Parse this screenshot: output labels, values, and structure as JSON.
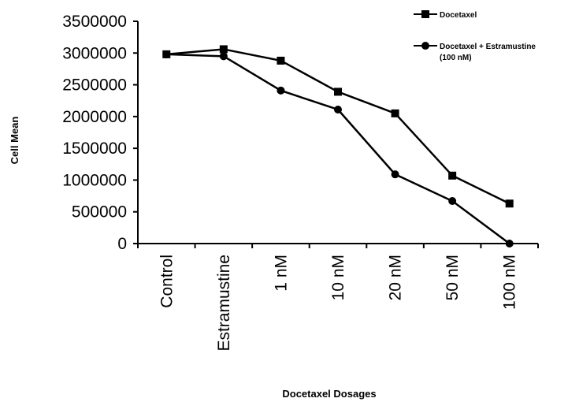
{
  "chart_data": {
    "type": "line",
    "title": "",
    "xlabel": "Docetaxel Dosages",
    "ylabel": "Cell Mean",
    "categories": [
      "Control",
      "Estramustine",
      "1 nM",
      "10 nM",
      "20 nM",
      "50 nM",
      "100 nM"
    ],
    "ylim": [
      0,
      3500000
    ],
    "yticks": [
      "0",
      "500000",
      "1000000",
      "1500000",
      "2000000",
      "2500000",
      "3000000",
      "3500000"
    ],
    "grid": false,
    "legend_position": "top-right",
    "series": [
      {
        "name": "Docetaxel",
        "marker": "square",
        "color": "#000000",
        "values": [
          2980000,
          3060000,
          2880000,
          2390000,
          2050000,
          1070000,
          630000
        ]
      },
      {
        "name": "Docetaxel + Estramustine",
        "name_line2": "(100 nM)",
        "marker": "circle",
        "color": "#000000",
        "values": [
          2980000,
          2950000,
          2410000,
          2110000,
          1090000,
          670000,
          0
        ]
      }
    ]
  }
}
